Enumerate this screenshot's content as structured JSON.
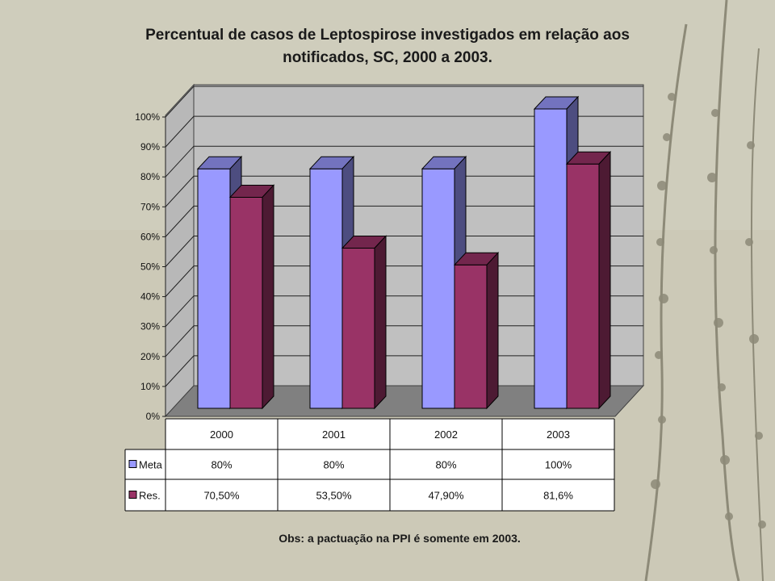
{
  "chart_data": {
    "type": "bar",
    "title_line1": "Percentual de casos de Leptospirose investigados em relação aos",
    "title_line2": "notificados, SC, 2000 a 2003.",
    "categories": [
      "2000",
      "2001",
      "2002",
      "2003"
    ],
    "series": [
      {
        "name": "Meta",
        "values": [
          80,
          80,
          80,
          100
        ],
        "labels": [
          "80%",
          "80%",
          "80%",
          "100%"
        ],
        "color": "#9999ff"
      },
      {
        "name": "Res.",
        "values": [
          70.5,
          53.5,
          47.9,
          81.6
        ],
        "labels": [
          "70,50%",
          "53,50%",
          "47,90%",
          "81,6%"
        ],
        "color": "#993366"
      }
    ],
    "ylim": [
      0,
      100
    ],
    "yticks": [
      "0%",
      "10%",
      "20%",
      "30%",
      "40%",
      "50%",
      "60%",
      "70%",
      "80%",
      "90%",
      "100%"
    ],
    "grid": true,
    "legend": "data-table"
  },
  "note": "Obs: a pactuação na PPI é somente em 2003."
}
